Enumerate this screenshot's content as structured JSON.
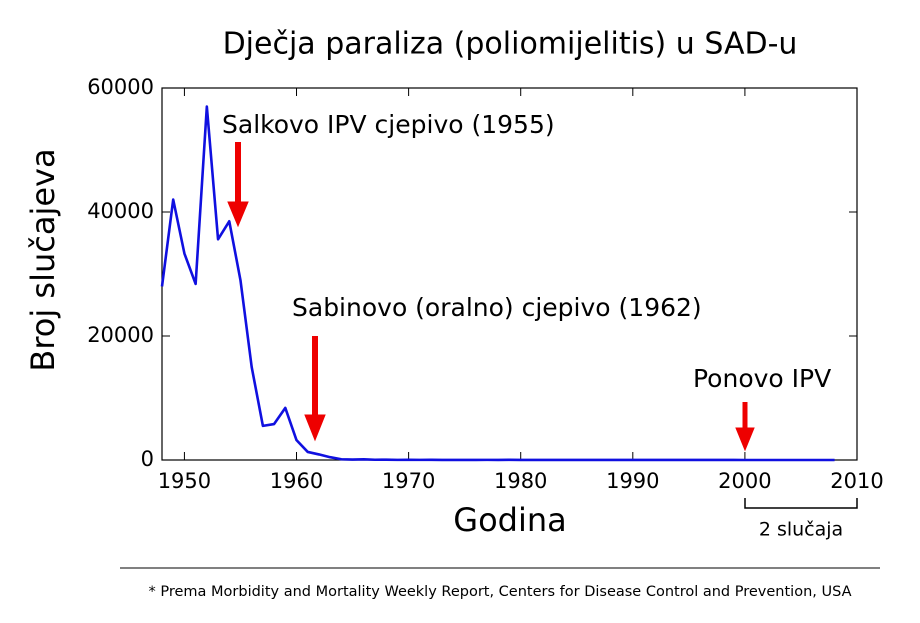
{
  "chart_data": {
    "type": "line",
    "title": "Dječja paraliza (poliomijelitis) u SAD-u",
    "x_label": "Godina",
    "y_label": "Broj slučajeva",
    "x": [
      1948,
      1949,
      1950,
      1951,
      1952,
      1953,
      1954,
      1955,
      1956,
      1957,
      1958,
      1959,
      1960,
      1961,
      1962,
      1963,
      1964,
      1965,
      1966,
      1967,
      1968,
      1969,
      1970,
      1971,
      1972,
      1973,
      1974,
      1975,
      1976,
      1977,
      1978,
      1979,
      1980,
      1981,
      1982,
      1983,
      1984,
      1985,
      1986,
      1987,
      1988,
      1989,
      1990,
      1991,
      1992,
      1993,
      1994,
      1995,
      1996,
      1997,
      1998,
      1999,
      2000,
      2001,
      2002,
      2003,
      2004,
      2005,
      2006,
      2007,
      2008
    ],
    "values": [
      28000,
      42000,
      33300,
      28400,
      57000,
      35600,
      38500,
      29000,
      15000,
      5500,
      5800,
      8400,
      3200,
      1300,
      900,
      450,
      120,
      70,
      110,
      40,
      50,
      20,
      30,
      20,
      30,
      10,
      10,
      10,
      10,
      20,
      10,
      30,
      10,
      10,
      10,
      10,
      10,
      10,
      10,
      10,
      10,
      10,
      10,
      10,
      10,
      10,
      10,
      10,
      10,
      10,
      10,
      10,
      0,
      0,
      0,
      0,
      0,
      0,
      0,
      0,
      0
    ],
    "color": "#1010e0",
    "xlim": [
      1948,
      2010
    ],
    "ylim": [
      0,
      60000
    ],
    "xticks": [
      1950,
      1960,
      1970,
      1980,
      1990,
      2000,
      2010
    ],
    "yticks": [
      0,
      20000,
      40000,
      60000
    ],
    "annotations": [
      "Salkovo IPV cjepivo (1955)",
      "Sabinovo (oralno) cjepivo (1962)",
      "Ponovo IPV",
      "2 slučaja"
    ],
    "footnote": "* Prema Morbidity and Mortality Weekly Report, Centers for Disease Control and Prevention, USA"
  }
}
